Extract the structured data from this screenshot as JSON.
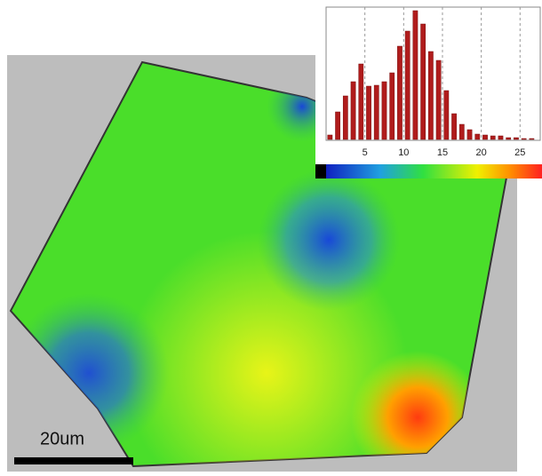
{
  "scale_bar": "20um",
  "chart_data": {
    "type": "histogram",
    "bins": [
      0,
      1,
      2,
      3,
      4,
      5,
      6,
      7,
      8,
      9,
      10,
      11,
      12,
      13,
      14,
      15,
      16,
      17,
      18,
      19,
      20,
      21,
      22,
      23,
      24,
      25,
      26,
      27
    ],
    "values": [
      5,
      31,
      49,
      65,
      85,
      60,
      61,
      65,
      75,
      105,
      122,
      145,
      130,
      99,
      89,
      55,
      29,
      17,
      11,
      6,
      5,
      4,
      4,
      2,
      2,
      1,
      1
    ],
    "color": "#b01c1c",
    "xlim": [
      0,
      27.6
    ],
    "xticks": [
      5,
      10,
      15,
      20,
      25
    ],
    "ylim": [
      0,
      147
    ],
    "grid": true
  }
}
